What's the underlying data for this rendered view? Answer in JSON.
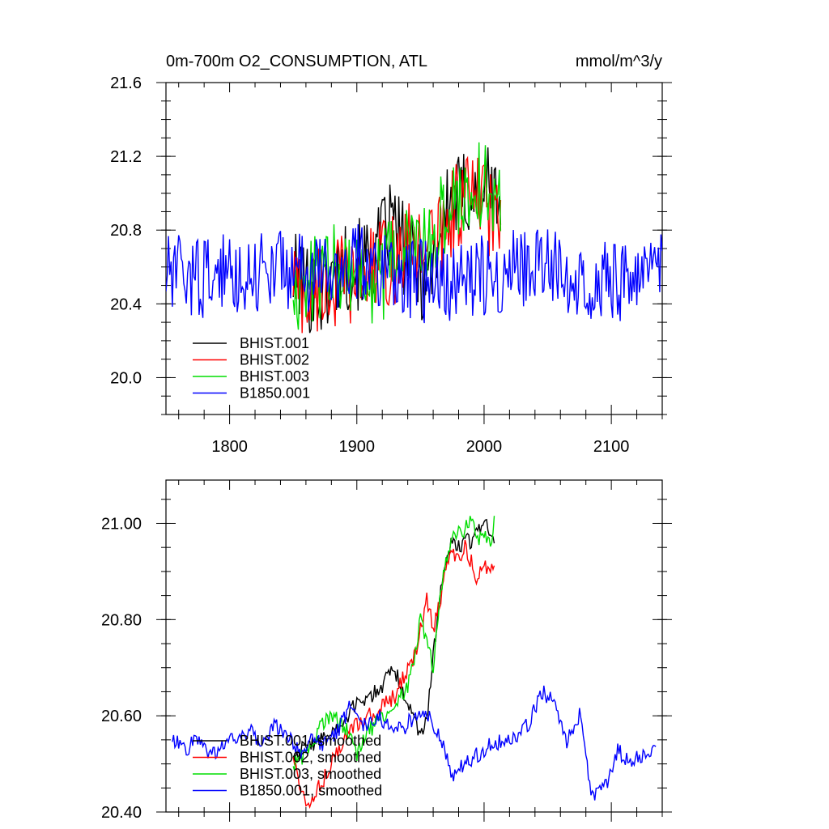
{
  "chart_data": [
    {
      "type": "line",
      "title": "0m-700m O2_CONSUMPTION, ATL",
      "units": "mmol/m^3/y",
      "xlim": [
        1750,
        2140
      ],
      "ylim": [
        19.8,
        21.6
      ],
      "xticks": [
        1800,
        1900,
        2000,
        2100
      ],
      "yticks": [
        20.0,
        20.4,
        20.8,
        21.2,
        21.6
      ],
      "x_tick_labels": [
        "1800",
        "1900",
        "2000",
        "2100"
      ],
      "y_tick_labels": [
        "20.0",
        "20.4",
        "20.8",
        "21.2",
        "21.6"
      ],
      "legend_position": "bottom-left",
      "series": [
        {
          "name": "BHIST.001",
          "color": "#000000",
          "x": [
            1850,
            1870,
            1890,
            1905,
            1915,
            1920,
            1928,
            1935,
            1945,
            1955,
            1962,
            1970,
            1978,
            1985,
            1992,
            2000,
            2007,
            2013
          ],
          "y": [
            20.55,
            20.45,
            20.6,
            20.62,
            20.65,
            20.75,
            20.85,
            20.72,
            20.62,
            20.52,
            20.7,
            20.9,
            20.95,
            21.0,
            21.0,
            21.05,
            21.0,
            20.95
          ]
        },
        {
          "name": "BHIST.002",
          "color": "#ff0000",
          "x": [
            1850,
            1860,
            1870,
            1880,
            1890,
            1900,
            1910,
            1920,
            1930,
            1940,
            1950,
            1960,
            1970,
            1980,
            1990,
            2000,
            2010,
            2013
          ],
          "y": [
            20.55,
            20.42,
            20.5,
            20.48,
            20.55,
            20.5,
            20.58,
            20.62,
            20.63,
            20.7,
            20.75,
            20.72,
            20.85,
            20.95,
            21.0,
            20.95,
            20.85,
            20.85
          ]
        },
        {
          "name": "BHIST.003",
          "color": "#00dd00",
          "x": [
            1850,
            1860,
            1870,
            1880,
            1890,
            1900,
            1910,
            1920,
            1930,
            1940,
            1950,
            1960,
            1970,
            1980,
            1990,
            2000,
            2010,
            2013
          ],
          "y": [
            20.52,
            20.48,
            20.55,
            20.6,
            20.62,
            20.6,
            20.5,
            20.55,
            20.65,
            20.72,
            20.68,
            20.75,
            20.9,
            20.98,
            21.02,
            21.05,
            20.95,
            20.95
          ]
        },
        {
          "name": "B1850.001",
          "color": "#0000ff",
          "x": [
            1750,
            1780,
            1810,
            1840,
            1870,
            1900,
            1930,
            1960,
            1990,
            2020,
            2050,
            2080,
            2110,
            2140
          ],
          "y": [
            20.55,
            20.55,
            20.57,
            20.6,
            20.55,
            20.62,
            20.58,
            20.5,
            20.55,
            20.58,
            20.6,
            20.55,
            20.52,
            20.55
          ]
        }
      ]
    },
    {
      "type": "line",
      "title": "",
      "xlim": [
        1750,
        2140
      ],
      "ylim": [
        20.4,
        21.09
      ],
      "xticks": [
        1800,
        1900,
        2000,
        2100
      ],
      "yticks": [
        20.4,
        20.6,
        20.8,
        21.0
      ],
      "y_tick_labels": [
        "20.40",
        "20.60",
        "20.80",
        "21.00"
      ],
      "legend_position": "bottom-left",
      "series": [
        {
          "name": "BHIST.001, smoothed",
          "color": "#000000",
          "x": [
            1850,
            1870,
            1890,
            1900,
            1910,
            1920,
            1925,
            1932,
            1940,
            1950,
            1955,
            1960,
            1965,
            1970,
            1975,
            1980,
            1985,
            1990,
            1995,
            2000,
            2005,
            2008
          ],
          "y": [
            20.52,
            20.55,
            20.58,
            20.63,
            20.64,
            20.66,
            20.7,
            20.68,
            20.63,
            20.55,
            20.6,
            20.72,
            20.85,
            20.92,
            20.96,
            20.95,
            20.97,
            20.96,
            20.98,
            21.01,
            20.98,
            20.95
          ]
        },
        {
          "name": "BHIST.002, smoothed",
          "color": "#ff0000",
          "x": [
            1850,
            1860,
            1870,
            1880,
            1890,
            1900,
            1910,
            1920,
            1930,
            1940,
            1945,
            1950,
            1955,
            1960,
            1965,
            1970,
            1975,
            1980,
            1985,
            1990,
            1995,
            2000,
            2005,
            2008
          ],
          "y": [
            20.52,
            20.41,
            20.45,
            20.5,
            20.55,
            20.58,
            20.6,
            20.62,
            20.64,
            20.7,
            20.72,
            20.78,
            20.84,
            20.78,
            20.83,
            20.9,
            20.94,
            20.92,
            20.95,
            20.92,
            20.88,
            20.92,
            20.9,
            20.9
          ]
        },
        {
          "name": "BHIST.003, smoothed",
          "color": "#00dd00",
          "x": [
            1850,
            1860,
            1870,
            1880,
            1890,
            1900,
            1910,
            1920,
            1930,
            1940,
            1945,
            1950,
            1955,
            1960,
            1965,
            1970,
            1975,
            1980,
            1985,
            1990,
            1995,
            2000,
            2005,
            2008
          ],
          "y": [
            20.5,
            20.52,
            20.57,
            20.6,
            20.58,
            20.52,
            20.57,
            20.6,
            20.62,
            20.66,
            20.72,
            20.8,
            20.76,
            20.7,
            20.84,
            20.92,
            20.97,
            20.98,
            20.99,
            21.0,
            20.97,
            20.98,
            20.95,
            21.0
          ]
        },
        {
          "name": "B1850.001, smoothed",
          "color": "#0000ff",
          "x": [
            1755,
            1765,
            1775,
            1785,
            1795,
            1805,
            1815,
            1825,
            1835,
            1845,
            1855,
            1865,
            1875,
            1885,
            1895,
            1905,
            1915,
            1925,
            1935,
            1945,
            1955,
            1965,
            1975,
            1985,
            1995,
            2005,
            2015,
            2025,
            2035,
            2045,
            2055,
            2065,
            2075,
            2085,
            2095,
            2105,
            2115,
            2125,
            2135
          ],
          "y": [
            20.55,
            20.53,
            20.55,
            20.52,
            20.54,
            20.55,
            20.57,
            20.54,
            20.58,
            20.56,
            20.52,
            20.55,
            20.54,
            20.57,
            20.62,
            20.58,
            20.6,
            20.58,
            20.57,
            20.6,
            20.61,
            20.56,
            20.47,
            20.5,
            20.52,
            20.54,
            20.55,
            20.56,
            20.58,
            20.65,
            20.63,
            20.55,
            20.6,
            20.43,
            20.45,
            20.53,
            20.5,
            20.52,
            20.54
          ]
        }
      ]
    }
  ]
}
